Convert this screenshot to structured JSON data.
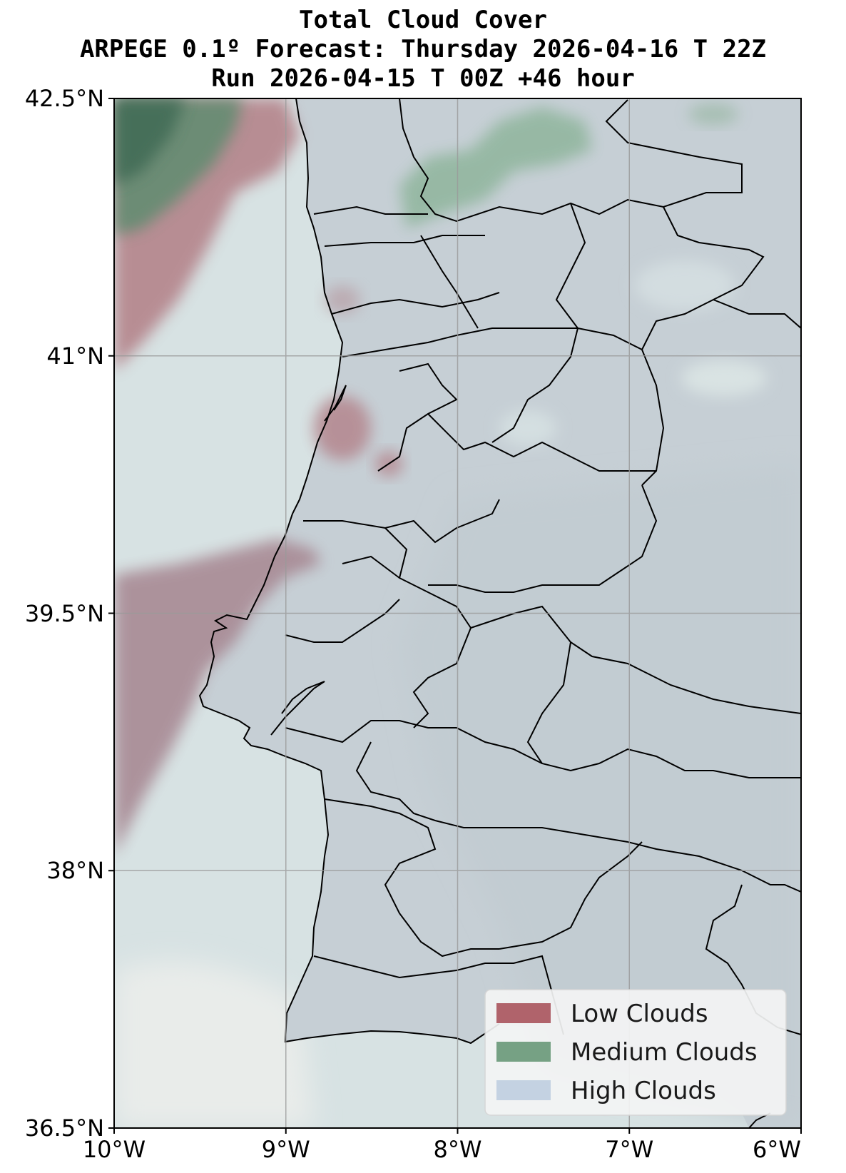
{
  "title": {
    "line1": "Total Cloud Cover",
    "line2": "ARPEGE 0.1º Forecast: Thursday 2026-04-16 T 22Z",
    "line3": "Run 2026-04-15 T 00Z +46 hour"
  },
  "map_extent": {
    "lon_min": -10,
    "lon_max": -6,
    "lat_min": 36.5,
    "lat_max": 42.5
  },
  "axes": {
    "lat_ticks": [
      {
        "value": 42.5,
        "label": "42.5°N"
      },
      {
        "value": 41,
        "label": "41°N"
      },
      {
        "value": 39.5,
        "label": "39.5°N"
      },
      {
        "value": 38,
        "label": "38°N"
      },
      {
        "value": 36.5,
        "label": "36.5°N"
      }
    ],
    "lon_ticks": [
      {
        "value": -10,
        "label": "10°W"
      },
      {
        "value": -9,
        "label": "9°W"
      },
      {
        "value": -8,
        "label": "8°W"
      },
      {
        "value": -7,
        "label": "7°W"
      },
      {
        "value": -6,
        "label": "6°W"
      }
    ],
    "gridlines": true
  },
  "legend": {
    "placement": "bottom-right",
    "items": [
      {
        "label": "Low Clouds",
        "color": "#b0636b"
      },
      {
        "label": "Medium Clouds",
        "color": "#76a184"
      },
      {
        "label": "High Clouds",
        "color": "#c4d2e2"
      }
    ]
  },
  "colors": {
    "land_overcast": "#c7d0d6",
    "sea_light": "#dde6e6",
    "low_cloud": "#b0636b",
    "medium_cloud": "#76a184",
    "high_cloud": "#c4d2e2",
    "border": "#000000"
  }
}
